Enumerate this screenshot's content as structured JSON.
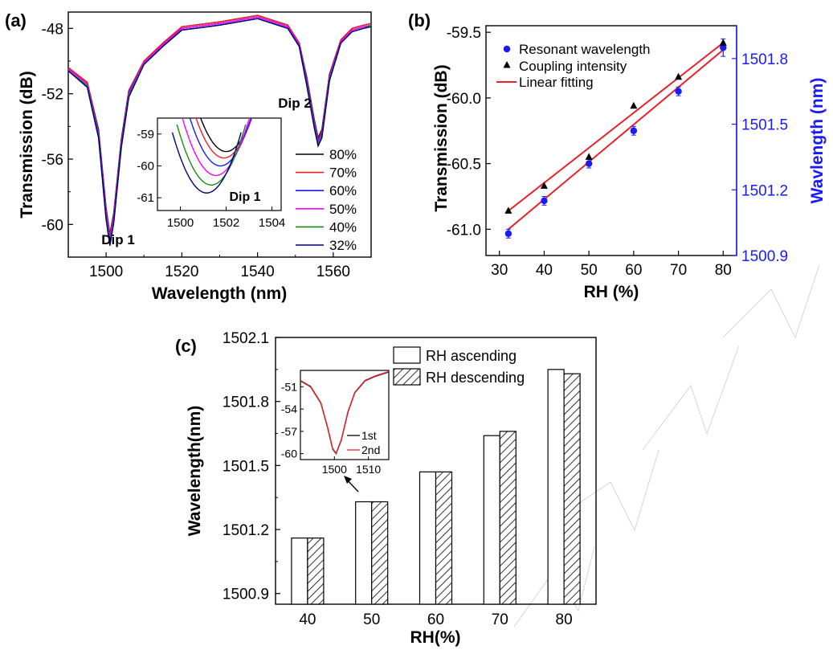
{
  "chart_data": [
    {
      "panel": "(a)",
      "type": "line",
      "xlabel": "Wavelength (nm)",
      "ylabel": "Transmission (dB)",
      "xlim": [
        1490,
        1570
      ],
      "ylim": [
        -62,
        -47
      ],
      "xticks": [
        "1500",
        "1520",
        "1540",
        "1560"
      ],
      "yticks": [
        "-48",
        "-52",
        "-56",
        "-60"
      ],
      "annotations": [
        "Dip 1",
        "Dip 2"
      ],
      "legend_position": "bottom-right",
      "series": [
        {
          "name": "80%",
          "color": "#000000",
          "x": [
            1490,
            1495,
            1498,
            1500,
            1501,
            1502,
            1504,
            1506,
            1510,
            1515,
            1520,
            1530,
            1540,
            1548,
            1551,
            1553,
            1555,
            1556,
            1557,
            1559,
            1562,
            1565,
            1568,
            1570
          ],
          "y": [
            -50.4,
            -51.3,
            -54.2,
            -59.0,
            -60.6,
            -59.3,
            -54.8,
            -51.8,
            -50.0,
            -48.9,
            -47.9,
            -47.6,
            -47.2,
            -47.8,
            -48.9,
            -51.0,
            -53.6,
            -54.7,
            -54.2,
            -50.8,
            -48.7,
            -48.0,
            -47.8,
            -47.7
          ]
        },
        {
          "name": "70%",
          "color": "#e8212a",
          "x": [
            1490,
            1495,
            1498,
            1500,
            1501,
            1502,
            1504,
            1506,
            1510,
            1515,
            1520,
            1530,
            1540,
            1548,
            1551,
            1553,
            1555,
            1556,
            1557,
            1559,
            1562,
            1565,
            1568,
            1570
          ],
          "y": [
            -50.4,
            -51.3,
            -54.3,
            -59.1,
            -60.7,
            -59.4,
            -54.9,
            -51.8,
            -50.0,
            -48.9,
            -47.9,
            -47.6,
            -47.2,
            -47.8,
            -48.9,
            -51.1,
            -53.7,
            -54.8,
            -54.3,
            -50.8,
            -48.7,
            -48.0,
            -47.8,
            -47.7
          ]
        },
        {
          "name": "60%",
          "color": "#1a1aff",
          "x": [
            1490,
            1495,
            1498,
            1500,
            1501,
            1502,
            1504,
            1506,
            1510,
            1515,
            1520,
            1530,
            1540,
            1548,
            1551,
            1553,
            1555,
            1556,
            1557,
            1559,
            1562,
            1565,
            1568,
            1570
          ],
          "y": [
            -50.5,
            -51.4,
            -54.4,
            -59.3,
            -60.9,
            -59.5,
            -55.0,
            -51.9,
            -50.1,
            -49.0,
            -48.0,
            -47.7,
            -47.3,
            -47.9,
            -49.0,
            -51.2,
            -53.8,
            -54.9,
            -54.4,
            -50.9,
            -48.8,
            -48.1,
            -47.9,
            -47.8
          ]
        },
        {
          "name": "50%",
          "color": "#ff00ff",
          "x": [
            1490,
            1495,
            1498,
            1500,
            1501,
            1502,
            1504,
            1506,
            1510,
            1515,
            1520,
            1530,
            1540,
            1548,
            1551,
            1553,
            1555,
            1556,
            1557,
            1559,
            1562,
            1565,
            1568,
            1570
          ],
          "y": [
            -50.5,
            -51.4,
            -54.5,
            -59.4,
            -61.0,
            -59.6,
            -55.1,
            -52.0,
            -50.1,
            -49.0,
            -48.0,
            -47.7,
            -47.3,
            -47.9,
            -49.0,
            -51.3,
            -53.9,
            -55.0,
            -54.5,
            -51.0,
            -48.8,
            -48.1,
            -47.9,
            -47.8
          ]
        },
        {
          "name": "40%",
          "color": "#1a8a1a",
          "x": [
            1490,
            1495,
            1498,
            1500,
            1501,
            1502,
            1504,
            1506,
            1510,
            1515,
            1520,
            1530,
            1540,
            1548,
            1551,
            1553,
            1555,
            1556,
            1557,
            1559,
            1562,
            1565,
            1568,
            1570
          ],
          "y": [
            -50.6,
            -51.5,
            -54.6,
            -59.6,
            -61.2,
            -59.8,
            -55.2,
            -52.1,
            -50.2,
            -49.1,
            -48.1,
            -47.8,
            -47.4,
            -48.0,
            -49.1,
            -51.4,
            -54.0,
            -55.1,
            -54.6,
            -51.1,
            -48.9,
            -48.2,
            -48.0,
            -47.8
          ]
        },
        {
          "name": "32%",
          "color": "#00007a",
          "x": [
            1490,
            1495,
            1498,
            1500,
            1501,
            1502,
            1504,
            1506,
            1510,
            1515,
            1520,
            1530,
            1540,
            1548,
            1551,
            1553,
            1555,
            1556,
            1557,
            1559,
            1562,
            1565,
            1568,
            1570
          ],
          "y": [
            -50.6,
            -51.6,
            -54.7,
            -59.7,
            -61.3,
            -59.9,
            -55.3,
            -52.2,
            -50.2,
            -49.1,
            -48.1,
            -47.8,
            -47.4,
            -48.0,
            -49.1,
            -51.5,
            -54.1,
            -55.2,
            -54.7,
            -51.2,
            -48.9,
            -48.2,
            -48.0,
            -47.9
          ]
        }
      ],
      "inset": {
        "xlim": [
          1499,
          1504.4
        ],
        "ylim": [
          -61.4,
          -58.5
        ],
        "xticks": [
          "1500",
          "1502",
          "1504"
        ],
        "yticks": [
          "-59",
          "-60",
          "-61"
        ],
        "label": "Dip 1",
        "minima": [
          {
            "name": "80%",
            "x": 1502.0,
            "y": -59.55
          },
          {
            "name": "70%",
            "x": 1501.9,
            "y": -59.75
          },
          {
            "name": "60%",
            "x": 1501.75,
            "y": -60.0
          },
          {
            "name": "50%",
            "x": 1501.55,
            "y": -60.3
          },
          {
            "name": "40%",
            "x": 1501.35,
            "y": -60.6
          },
          {
            "name": "32%",
            "x": 1501.15,
            "y": -60.85
          }
        ]
      }
    },
    {
      "panel": "(b)",
      "type": "scatter",
      "xlabel": "RH (%)",
      "ylabel": "Transmission (dB)",
      "y2label": "Wavlength (nm)",
      "xlim": [
        27,
        83
      ],
      "ylim": [
        -61.2,
        -59.45
      ],
      "y2lim": [
        1500.9,
        1501.95
      ],
      "xticks": [
        "30",
        "40",
        "50",
        "60",
        "70",
        "80"
      ],
      "yticks": [
        "-59.5",
        "-60.0",
        "-60.5",
        "-61.0"
      ],
      "y2ticks": [
        "1501.8",
        "1501.5",
        "1501.2",
        "1500.9"
      ],
      "legend_position": "top-left",
      "x": [
        32,
        40,
        50,
        60,
        70,
        80
      ],
      "series": [
        {
          "name": "Resonant wavelength",
          "axis": "right",
          "color": "#1a1aff",
          "marker": "circle",
          "values": [
            1501.0,
            1501.15,
            1501.32,
            1501.47,
            1501.65,
            1501.85
          ],
          "error": [
            0.02,
            0.02,
            0.02,
            0.02,
            0.02,
            0.04
          ]
        },
        {
          "name": "Coupling intensity",
          "axis": "left",
          "color": "#000000",
          "marker": "triangle",
          "values": [
            -60.86,
            -60.67,
            -60.45,
            -60.06,
            -59.84,
            -59.58
          ],
          "error": [
            0.01,
            0.01,
            0.02,
            0.02,
            0.02,
            0.01
          ]
        },
        {
          "name": "Linear fitting",
          "color": "#e8212a",
          "marker": "line",
          "lines": [
            {
              "axis": "left",
              "from": [
                32,
                -60.86
              ],
              "to": [
                80,
                -59.58
              ]
            },
            {
              "axis": "right",
              "from": [
                32,
                1501.02
              ],
              "to": [
                80,
                1501.84
              ]
            }
          ]
        }
      ]
    },
    {
      "panel": "(c)",
      "type": "bar",
      "xlabel": "RH(%)",
      "ylabel": "Wavelength(nm)",
      "ylim": [
        1500.85,
        1502.1
      ],
      "yticks": [
        "1502.1",
        "1501.8",
        "1501.5",
        "1501.2",
        "1500.9"
      ],
      "categories": [
        "40",
        "50",
        "60",
        "70",
        "80"
      ],
      "legend_position": "top-right",
      "series": [
        {
          "name": "RH ascending",
          "pattern": "open",
          "values": [
            1501.16,
            1501.33,
            1501.47,
            1501.64,
            1501.95
          ]
        },
        {
          "name": "RH descending",
          "pattern": "hatched",
          "values": [
            1501.16,
            1501.33,
            1501.47,
            1501.66,
            1501.93
          ]
        }
      ],
      "inset": {
        "xlim": [
          1490,
          1516
        ],
        "ylim": [
          -60.8,
          -48.8
        ],
        "xticks": [
          "1500",
          "1510"
        ],
        "yticks": [
          "-51",
          "-54",
          "-57",
          "-60"
        ],
        "series": [
          {
            "name": "1st",
            "color": "#000000"
          },
          {
            "name": "2nd",
            "color": "#e8212a"
          }
        ],
        "x": [
          1490,
          1493,
          1496,
          1498,
          1499.5,
          1500.5,
          1502,
          1504,
          1506,
          1509,
          1512,
          1516
        ],
        "y": [
          -50.2,
          -51.0,
          -53.2,
          -56.5,
          -59.4,
          -60.0,
          -58.2,
          -54.4,
          -51.8,
          -50.2,
          -49.6,
          -49.0
        ]
      }
    }
  ]
}
